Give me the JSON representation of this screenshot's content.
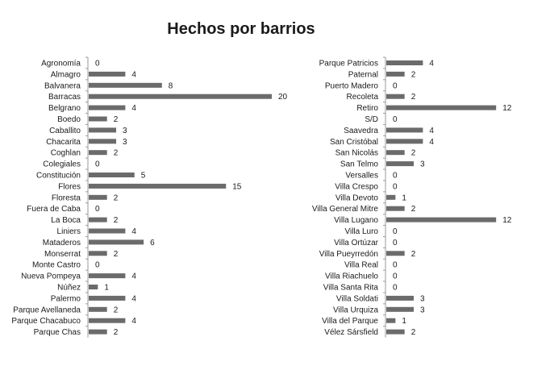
{
  "chart_data": {
    "type": "bar",
    "orientation": "horizontal",
    "title": "Hechos por barrios",
    "bar_color": "#6b6b6b",
    "panels": [
      {
        "categories": [
          "Agronomía",
          "Almagro",
          "Balvanera",
          "Barracas",
          "Belgrano",
          "Boedo",
          "Caballito",
          "Chacarita",
          "Coghlan",
          "Colegiales",
          "Constitución",
          "Flores",
          "Floresta",
          "Fuera de Caba",
          "La Boca",
          "Liniers",
          "Mataderos",
          "Monserrat",
          "Monte Castro",
          "Nueva Pompeya",
          "Núñez",
          "Palermo",
          "Parque Avellaneda",
          "Parque Chacabuco",
          "Parque Chas"
        ],
        "values": [
          0,
          4,
          8,
          20,
          4,
          2,
          3,
          3,
          2,
          0,
          5,
          15,
          2,
          0,
          2,
          4,
          6,
          2,
          0,
          4,
          1,
          4,
          2,
          4,
          2
        ]
      },
      {
        "categories": [
          "Parque Patricios",
          "Paternal",
          "Puerto Madero",
          "Recoleta",
          "Retiro",
          "S/D",
          "Saavedra",
          "San Cristóbal",
          "San Nicolás",
          "San Telmo",
          "Versalles",
          "Villa Crespo",
          "Villa Devoto",
          "Villa General Mitre",
          "Villa Lugano",
          "Villa Luro",
          "Villa Ortúzar",
          "Villa Pueyrredón",
          "Villa Real",
          "Villa Riachuelo",
          "Villa Santa  Rita",
          "Villa Soldati",
          "Villa Urquiza",
          "Villa del Parque",
          "Vélez Sársfield"
        ],
        "values": [
          4,
          2,
          0,
          2,
          12,
          0,
          4,
          4,
          2,
          3,
          0,
          0,
          1,
          2,
          12,
          0,
          0,
          2,
          0,
          0,
          0,
          3,
          3,
          1,
          2
        ]
      }
    ]
  }
}
